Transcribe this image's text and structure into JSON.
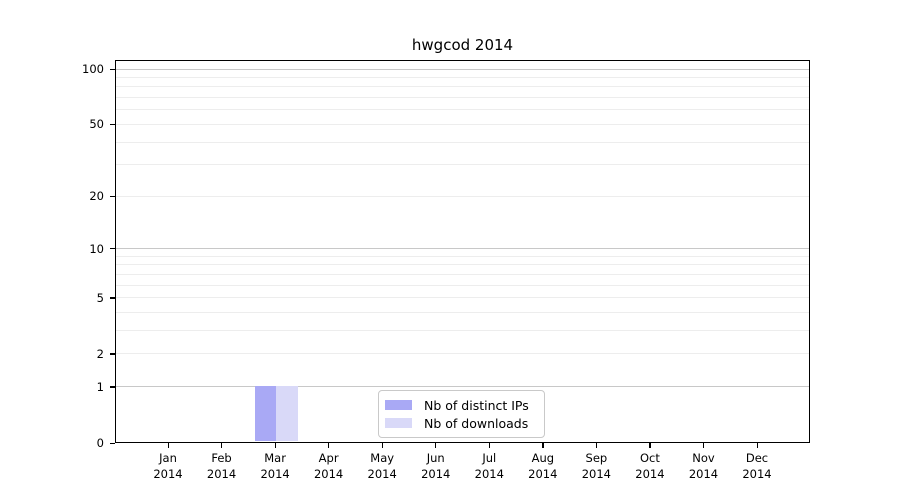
{
  "chart_data": {
    "type": "bar",
    "title": "hwgcod 2014",
    "x_categories": [
      "Jan",
      "Feb",
      "Mar",
      "Apr",
      "May",
      "Jun",
      "Jul",
      "Aug",
      "Sep",
      "Oct",
      "Nov",
      "Dec"
    ],
    "x_year_label": "2014",
    "series": [
      {
        "name": "Nb of distinct IPs",
        "color": "#a9a9f5",
        "values": [
          0,
          0,
          1,
          0,
          0,
          0,
          0,
          0,
          0,
          0,
          0,
          0
        ]
      },
      {
        "name": "Nb of downloads",
        "color": "#d9d9f8",
        "values": [
          0,
          0,
          1,
          0,
          0,
          0,
          0,
          0,
          0,
          0,
          0,
          0
        ]
      }
    ],
    "y_scale": "log1p",
    "ylim": [
      0,
      112
    ],
    "y_ticks": [
      0,
      1,
      2,
      5,
      10,
      20,
      50,
      100
    ],
    "grid": {
      "major_values": [
        1,
        10,
        100
      ],
      "minor_values": [
        2,
        3,
        4,
        5,
        6,
        7,
        8,
        9,
        20,
        30,
        40,
        50,
        60,
        70,
        80,
        90
      ],
      "major_color": "#c8c8c8",
      "minor_color": "#ededed"
    },
    "legend": {
      "position": "lower center",
      "border_color": "#c9c9c9"
    },
    "axis_color": "#000000",
    "background_color": "#ffffff"
  }
}
